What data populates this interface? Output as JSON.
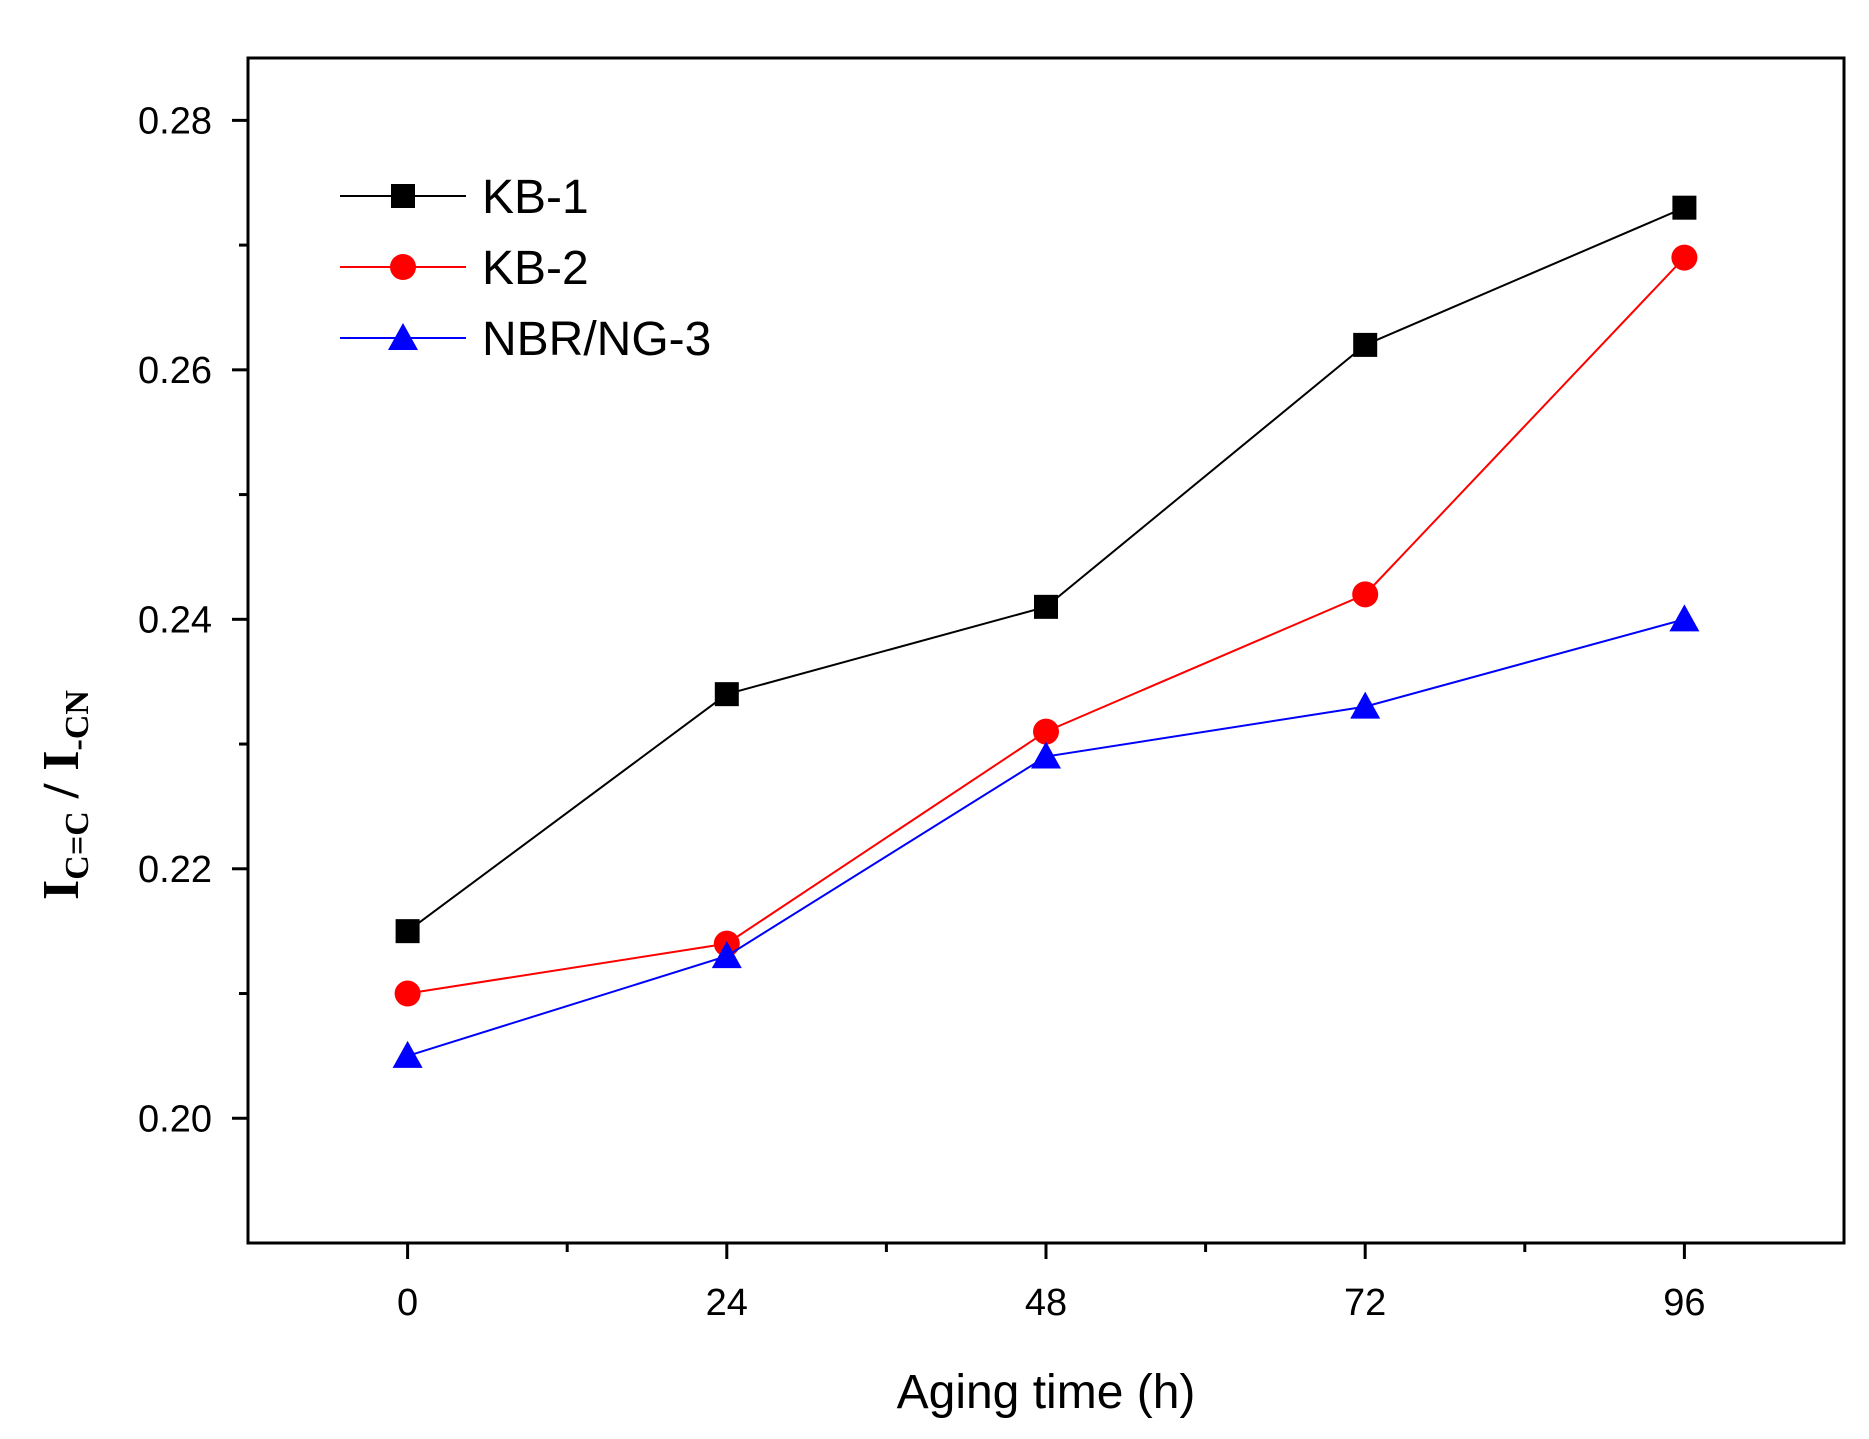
{
  "chart_data": {
    "type": "line",
    "title": "",
    "xlabel": "Aging time (h)",
    "ylabel": {
      "main1": "I",
      "sub1": "C=C",
      "sep": " / ",
      "main2": "I",
      "sub2": "-CN"
    },
    "x": [
      0,
      24,
      48,
      72,
      96
    ],
    "x_tick_labels": [
      "0",
      "24",
      "48",
      "72",
      "96"
    ],
    "xlim": [
      -12,
      108
    ],
    "ylim": [
      0.19,
      0.285
    ],
    "y_ticks": [
      0.2,
      0.22,
      0.24,
      0.26,
      0.28
    ],
    "y_tick_labels": [
      "0.20",
      "0.22",
      "0.24",
      "0.26",
      "0.28"
    ],
    "grid": false,
    "legend_position": "top-left",
    "series": [
      {
        "name": "KB-1",
        "color": "#000000",
        "marker": "square",
        "values": [
          0.215,
          0.234,
          0.241,
          0.262,
          0.273
        ]
      },
      {
        "name": "KB-2",
        "color": "#ff0000",
        "marker": "circle",
        "values": [
          0.21,
          0.214,
          0.231,
          0.242,
          0.269
        ]
      },
      {
        "name": "NBR/NG-3",
        "color": "#0000ff",
        "marker": "triangle",
        "values": [
          0.205,
          0.213,
          0.229,
          0.233,
          0.24
        ]
      }
    ]
  }
}
